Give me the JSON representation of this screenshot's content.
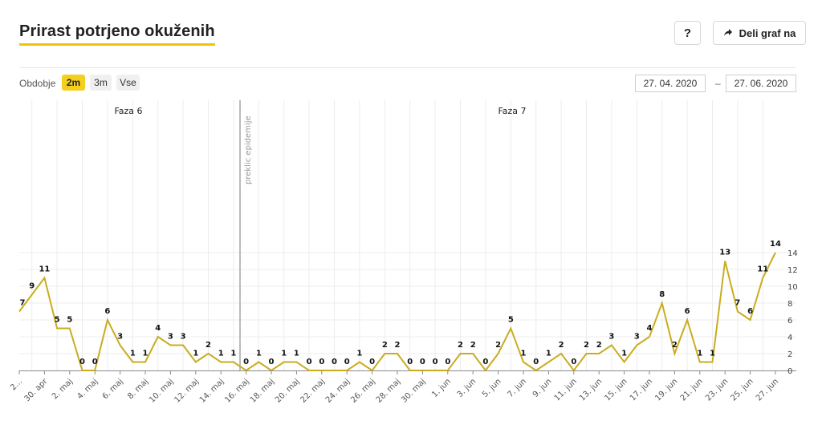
{
  "header": {
    "title": "Prirast potrjeno okuženih",
    "help_label": "?",
    "share_label": "Deli graf na"
  },
  "controls": {
    "period_label": "Obdobje",
    "periods": [
      {
        "label": "2m",
        "active": true
      },
      {
        "label": "3m",
        "active": false
      },
      {
        "label": "Vse",
        "active": false
      }
    ],
    "date_from": "27. 04. 2020",
    "date_sep": "–",
    "date_to": "27. 06. 2020"
  },
  "colors": {
    "line": "#c9ad1f",
    "accent": "#f5cf1e",
    "grid": "#ececec",
    "marker": "#bbbbbb"
  },
  "chart_data": {
    "type": "line",
    "title": "Prirast potrjeno okuženih",
    "x_start": "2020-04-27",
    "values": [
      7,
      9,
      11,
      5,
      5,
      0,
      0,
      6,
      3,
      1,
      1,
      4,
      3,
      3,
      1,
      2,
      1,
      1,
      0,
      1,
      0,
      1,
      1,
      0,
      0,
      0,
      0,
      1,
      0,
      2,
      2,
      0,
      0,
      0,
      0,
      2,
      2,
      0,
      2,
      5,
      1,
      0,
      1,
      2,
      0,
      2,
      2,
      3,
      1,
      3,
      4,
      8,
      2,
      6,
      1,
      1,
      13,
      7,
      6,
      11,
      14
    ],
    "x_tick_labels": [
      "2...",
      "30. apr",
      "2. maj",
      "4. maj",
      "6. maj",
      "8. maj",
      "10. maj",
      "12. maj",
      "14. maj",
      "16. maj",
      "18. maj",
      "20. maj",
      "22. maj",
      "24. maj",
      "26. maj",
      "28. maj",
      "30. maj",
      "1. jun",
      "3. jun",
      "5. jun",
      "7. jun",
      "9. jun",
      "11. jun",
      "13. jun",
      "15. jun",
      "17. jun",
      "19. jun",
      "21. jun",
      "23. jun",
      "25. jun",
      "27. jun"
    ],
    "y_ticks": [
      0,
      2,
      4,
      6,
      8,
      10,
      12,
      14
    ],
    "ylim": [
      0,
      15
    ],
    "grid": true,
    "phases": [
      {
        "label": "Faza 6"
      },
      {
        "label": "Faza 7"
      }
    ],
    "marker": {
      "label": "preklic epidemije"
    }
  }
}
